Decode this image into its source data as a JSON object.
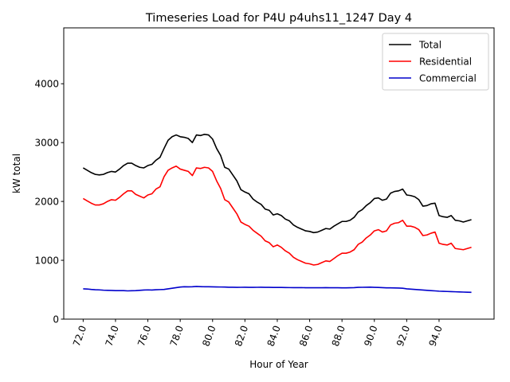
{
  "chart_data": {
    "type": "line",
    "title": "Timeseries Load for P4U p4uhs11_1247  Day 4",
    "xlabel": "Hour of Year",
    "ylabel": "kW total",
    "xlim": [
      70.8,
      97.4
    ],
    "ylim": [
      0,
      4950
    ],
    "xticks": [
      72,
      74,
      76,
      78,
      80,
      82,
      84,
      86,
      88,
      90,
      92,
      94
    ],
    "xtick_labels": [
      "72.0",
      "74.0",
      "76.0",
      "78.0",
      "80.0",
      "82.0",
      "84.0",
      "86.0",
      "88.0",
      "90.0",
      "92.0",
      "94.0"
    ],
    "yticks": [
      0,
      1000,
      2000,
      3000,
      4000
    ],
    "ytick_labels": [
      "0",
      "1000",
      "2000",
      "3000",
      "4000"
    ],
    "legend_position": "top-right",
    "x": [
      72.0,
      72.25,
      72.5,
      72.75,
      73.0,
      73.25,
      73.5,
      73.75,
      74.0,
      74.25,
      74.5,
      74.75,
      75.0,
      75.25,
      75.5,
      75.75,
      76.0,
      76.25,
      76.5,
      76.75,
      77.0,
      77.25,
      77.5,
      77.75,
      78.0,
      78.25,
      78.5,
      78.75,
      79.0,
      79.25,
      79.5,
      79.75,
      80.0,
      80.25,
      80.5,
      80.75,
      81.0,
      81.25,
      81.5,
      81.75,
      82.0,
      82.25,
      82.5,
      82.75,
      83.0,
      83.25,
      83.5,
      83.75,
      84.0,
      84.25,
      84.5,
      84.75,
      85.0,
      85.25,
      85.5,
      85.75,
      86.0,
      86.25,
      86.5,
      86.75,
      87.0,
      87.25,
      87.5,
      87.75,
      88.0,
      88.25,
      88.5,
      88.75,
      89.0,
      89.25,
      89.5,
      89.75,
      90.0,
      90.25,
      90.5,
      90.75,
      91.0,
      91.25,
      91.5,
      91.75,
      92.0,
      92.25,
      92.5,
      92.75,
      93.0,
      93.25,
      93.5,
      93.75,
      94.0,
      94.25,
      94.5,
      94.75,
      95.0,
      95.25,
      95.5,
      95.75,
      96.0
    ],
    "series": [
      {
        "name": "Total",
        "color": "#000000",
        "values": [
          2570,
          2530,
          2490,
          2460,
          2450,
          2460,
          2490,
          2510,
          2500,
          2550,
          2610,
          2650,
          2650,
          2610,
          2580,
          2570,
          2610,
          2630,
          2700,
          2750,
          2900,
          3040,
          3100,
          3130,
          3100,
          3090,
          3070,
          3000,
          3130,
          3120,
          3140,
          3130,
          3060,
          2900,
          2780,
          2580,
          2550,
          2450,
          2350,
          2200,
          2160,
          2130,
          2040,
          1990,
          1950,
          1870,
          1850,
          1770,
          1790,
          1760,
          1700,
          1670,
          1600,
          1560,
          1530,
          1500,
          1490,
          1470,
          1480,
          1510,
          1540,
          1530,
          1580,
          1620,
          1660,
          1660,
          1680,
          1730,
          1820,
          1860,
          1930,
          1980,
          2050,
          2060,
          2020,
          2040,
          2140,
          2170,
          2180,
          2210,
          2110,
          2100,
          2080,
          2030,
          1920,
          1930,
          1960,
          1970,
          1760,
          1740,
          1730,
          1760,
          1680,
          1670,
          1650,
          1670,
          1690
        ]
      },
      {
        "name": "Residential",
        "color": "#ff0000",
        "values": [
          2050,
          2010,
          1970,
          1940,
          1940,
          1960,
          2000,
          2030,
          2020,
          2070,
          2130,
          2180,
          2180,
          2120,
          2090,
          2060,
          2110,
          2130,
          2210,
          2250,
          2420,
          2530,
          2570,
          2600,
          2550,
          2530,
          2510,
          2440,
          2570,
          2560,
          2580,
          2570,
          2510,
          2350,
          2220,
          2030,
          1990,
          1890,
          1790,
          1650,
          1610,
          1580,
          1510,
          1460,
          1410,
          1330,
          1300,
          1230,
          1260,
          1220,
          1160,
          1120,
          1050,
          1010,
          980,
          950,
          940,
          920,
          930,
          960,
          990,
          980,
          1030,
          1080,
          1120,
          1120,
          1140,
          1180,
          1270,
          1310,
          1380,
          1430,
          1500,
          1520,
          1480,
          1500,
          1600,
          1630,
          1640,
          1680,
          1580,
          1580,
          1560,
          1520,
          1420,
          1430,
          1460,
          1480,
          1290,
          1270,
          1260,
          1290,
          1200,
          1190,
          1180,
          1200,
          1220
        ]
      },
      {
        "name": "Commercial",
        "color": "#0000cc",
        "values": [
          515,
          512,
          505,
          500,
          497,
          492,
          490,
          488,
          485,
          485,
          485,
          480,
          482,
          485,
          490,
          495,
          497,
          495,
          500,
          502,
          505,
          515,
          525,
          535,
          545,
          550,
          548,
          550,
          555,
          552,
          550,
          550,
          548,
          547,
          546,
          545,
          542,
          542,
          540,
          541,
          542,
          540,
          540,
          541,
          542,
          540,
          540,
          539,
          538,
          538,
          537,
          536,
          535,
          535,
          535,
          534,
          534,
          533,
          533,
          534,
          535,
          534,
          534,
          533,
          532,
          532,
          533,
          535,
          540,
          541,
          542,
          543,
          540,
          538,
          535,
          532,
          532,
          530,
          528,
          525,
          515,
          510,
          505,
          500,
          495,
          490,
          485,
          480,
          475,
          473,
          470,
          468,
          465,
          463,
          460,
          458,
          456
        ]
      }
    ]
  }
}
